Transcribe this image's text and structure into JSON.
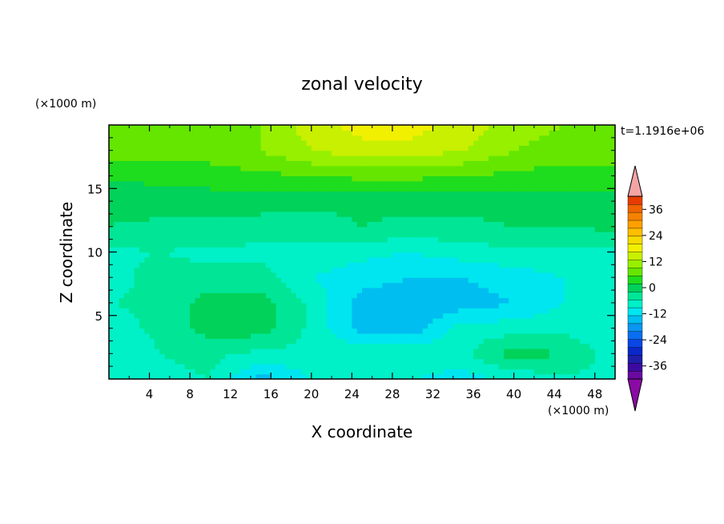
{
  "chart_data": {
    "type": "heatmap",
    "title": "zonal velocity",
    "xlabel": "X coordinate",
    "ylabel": "Z coordinate",
    "x_unit": "(×1000 m)",
    "y_unit": "(×1000 m)",
    "time_label": "t=1.1916e+06",
    "xlim": [
      0,
      50
    ],
    "ylim": [
      0,
      20
    ],
    "x_ticks": [
      "4",
      "8",
      "12",
      "16",
      "20",
      "24",
      "28",
      "32",
      "36",
      "40",
      "44",
      "48"
    ],
    "y_ticks": [
      "5",
      "10",
      "15"
    ],
    "x_tick_values": [
      4,
      8,
      12,
      16,
      20,
      24,
      28,
      32,
      36,
      40,
      44,
      48
    ],
    "y_tick_values": [
      5,
      10,
      15
    ],
    "colorbar": {
      "min": -42,
      "max": 42,
      "step": 4,
      "labels": [
        "36",
        "24",
        "12",
        "0",
        "-12",
        "-24",
        "-36"
      ],
      "label_values": [
        36,
        24,
        12,
        0,
        -12,
        -24,
        -36
      ],
      "over_color": "#f4a4a4",
      "under_color": "#8b0aa5",
      "colors": [
        "#6a0aa0",
        "#3c0aa0",
        "#1e1ea8",
        "#0a28c8",
        "#0a46e6",
        "#0a6ef0",
        "#0a96f0",
        "#00bef0",
        "#00e6f0",
        "#00f0c8",
        "#00e696",
        "#00d25a",
        "#1edc1e",
        "#64e600",
        "#96f000",
        "#c8f000",
        "#f0f000",
        "#f5dc00",
        "#ffbe00",
        "#ffa000",
        "#f58200",
        "#f06400",
        "#e63c00"
      ]
    },
    "x": [
      0,
      5,
      10,
      15,
      20,
      25,
      30,
      35,
      40,
      45,
      50
    ],
    "z": [
      0,
      2,
      4,
      6,
      8,
      10,
      12,
      14,
      16,
      18,
      20
    ],
    "values": [
      [
        -6,
        -3,
        -2,
        -12,
        -6,
        -6,
        -6,
        -8,
        -5,
        -3,
        -3
      ],
      [
        -6,
        -2,
        -1,
        -3,
        -3,
        -3,
        -3,
        -3,
        4,
        2,
        -4
      ],
      [
        -4,
        -1,
        4,
        4,
        -3,
        -12,
        -12,
        -4,
        -4,
        -3,
        -6
      ],
      [
        -2,
        -1,
        4,
        4,
        -3,
        -12,
        -14,
        -12,
        -10,
        -6,
        -6
      ],
      [
        -4,
        0,
        -1,
        0,
        -6,
        -8,
        -10,
        -10,
        -8,
        -6,
        -5
      ],
      [
        -3,
        -2,
        -3,
        -3,
        -4,
        -5,
        -6,
        -4,
        -3,
        -3,
        -3
      ],
      [
        2,
        1,
        1,
        0,
        0,
        2,
        1,
        1,
        2,
        2,
        3
      ],
      [
        3,
        4,
        4,
        4,
        3,
        3,
        3,
        3,
        4,
        4,
        4
      ],
      [
        7,
        7,
        8,
        9,
        10,
        11,
        11,
        10,
        9,
        8,
        8
      ],
      [
        12,
        12,
        12,
        14,
        18,
        20,
        20,
        18,
        14,
        12,
        12
      ],
      [
        13,
        13,
        14,
        14,
        20,
        24,
        24,
        20,
        16,
        14,
        14
      ]
    ]
  }
}
